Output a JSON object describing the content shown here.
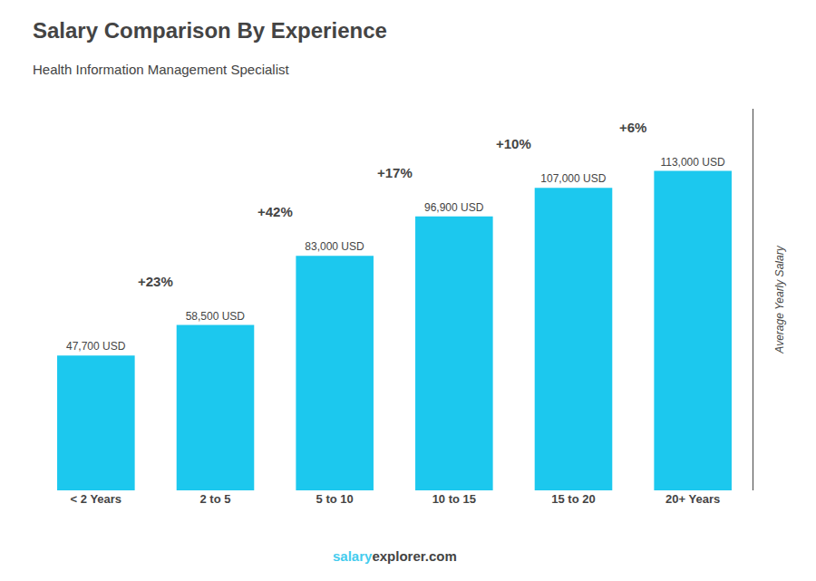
{
  "chart_data": {
    "type": "bar",
    "title": "Salary Comparison By Experience",
    "subtitle": "Health Information Management Specialist",
    "categories": [
      "< 2 Years",
      "2 to 5",
      "5 to 10",
      "10 to 15",
      "15 to 20",
      "20+ Years"
    ],
    "values": [
      47700,
      58500,
      83000,
      96900,
      107000,
      113000
    ],
    "value_labels": [
      "47,700 USD",
      "58,500 USD",
      "83,000 USD",
      "96,900 USD",
      "107,000 USD",
      "113,000 USD"
    ],
    "data_labels": true,
    "color": "#1CC8EE",
    "ylabel": "Average Yearly Salary",
    "ylim": [
      0,
      135000
    ],
    "tick_labels": "x",
    "grid": false,
    "annotations": [
      "+23%",
      "+42%",
      "+17%",
      "+10%",
      "+6%"
    ],
    "footer": [
      {
        "text": "salary",
        "color": "#44CCEE"
      },
      {
        "text": "explorer"
      },
      {
        "text": ".com"
      }
    ]
  }
}
